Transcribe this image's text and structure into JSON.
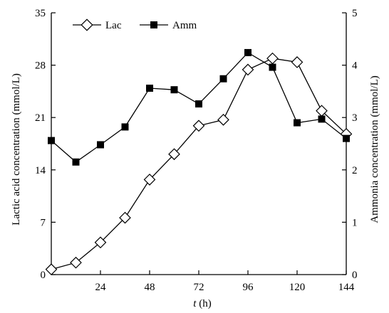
{
  "chart_data": {
    "type": "line",
    "xlabel_italic": "t",
    "xlabel_rest": " (h)",
    "ylabel_left": "Lactic acid concentration (mmol/L)",
    "ylabel_right": "Ammonia concentration (mmol/L)",
    "xlim": [
      0,
      144
    ],
    "ylim_left": [
      0,
      35
    ],
    "ylim_right": [
      0,
      5
    ],
    "x_ticks": [
      24,
      48,
      72,
      96,
      120,
      144
    ],
    "x_tick_labels": [
      "24",
      "48",
      "72",
      "96",
      "120",
      "144"
    ],
    "y_left_ticks": [
      0,
      7,
      14,
      21,
      28,
      35
    ],
    "y_left_tick_labels": [
      "0",
      "7",
      "14",
      "21",
      "28",
      "35"
    ],
    "y_right_ticks": [
      0,
      1,
      2,
      3,
      4,
      5
    ],
    "y_right_tick_labels": [
      "0",
      "1",
      "2",
      "3",
      "4",
      "5"
    ],
    "grid": false,
    "legend_position": "top-left",
    "series": [
      {
        "name": "Lac",
        "axis": "left",
        "marker": "open-diamond",
        "x": [
          0,
          12,
          24,
          36,
          48,
          60,
          72,
          84,
          96,
          108,
          120,
          132,
          144
        ],
        "y": [
          0.7,
          1.6,
          4.3,
          7.6,
          12.7,
          16.1,
          19.9,
          20.7,
          27.4,
          28.9,
          28.4,
          21.9,
          18.8
        ]
      },
      {
        "name": "Amm",
        "axis": "right",
        "marker": "filled-square",
        "x": [
          0,
          12,
          24,
          36,
          48,
          60,
          72,
          84,
          96,
          108,
          120,
          132,
          144
        ],
        "y": [
          2.56,
          2.15,
          2.48,
          2.82,
          3.56,
          3.53,
          3.26,
          3.74,
          4.24,
          3.96,
          2.9,
          2.97,
          2.6
        ]
      }
    ]
  }
}
